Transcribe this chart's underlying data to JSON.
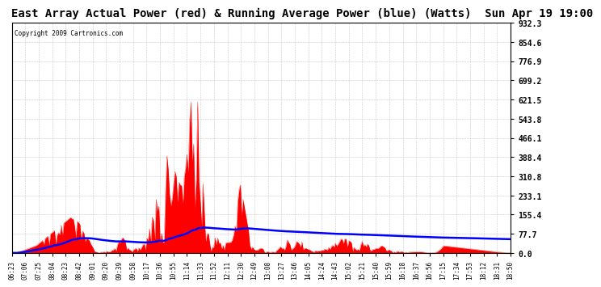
{
  "title": "East Array Actual Power (red) & Running Average Power (blue) (Watts)  Sun Apr 19 19:00",
  "copyright": "Copyright 2009 Cartronics.com",
  "ylabel_right_values": [
    932.3,
    854.6,
    776.9,
    699.2,
    621.5,
    543.8,
    466.1,
    388.4,
    310.8,
    233.1,
    155.4,
    77.7,
    0.0
  ],
  "ymax": 932.3,
  "ymin": 0.0,
  "background_color": "#ffffff",
  "plot_bg_color": "#ffffff",
  "actual_color": "#ff0000",
  "avg_color": "#0000ff",
  "grid_color": "#c8c8c8",
  "title_fontsize": 10,
  "tick_labels": [
    "06:23",
    "07:06",
    "07:25",
    "08:04",
    "08:23",
    "08:42",
    "09:01",
    "09:20",
    "09:39",
    "09:58",
    "10:17",
    "10:36",
    "10:55",
    "11:14",
    "11:33",
    "11:52",
    "12:11",
    "12:30",
    "12:49",
    "13:08",
    "13:27",
    "13:46",
    "14:05",
    "14:24",
    "14:43",
    "15:02",
    "15:21",
    "15:40",
    "15:59",
    "16:18",
    "16:37",
    "16:56",
    "17:15",
    "17:34",
    "17:53",
    "18:12",
    "18:31",
    "18:50"
  ]
}
